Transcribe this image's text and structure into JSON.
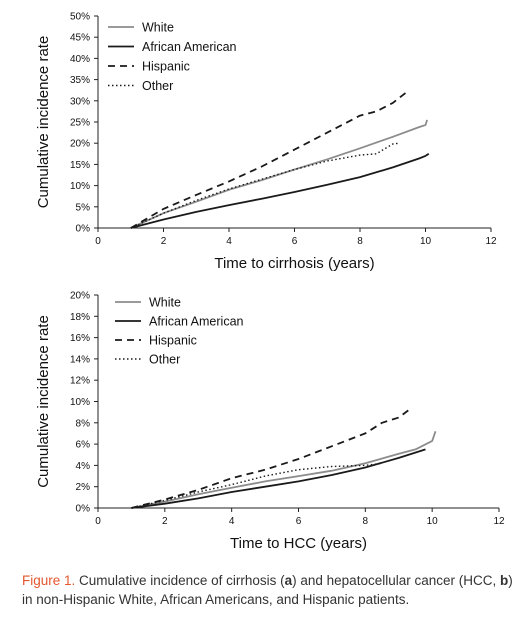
{
  "chart_data": [
    {
      "type": "line",
      "xlabel": "Time to cirrhosis (years)",
      "ylabel": "Cumulative incidence rate",
      "xlim": [
        0,
        12
      ],
      "ylim": [
        0,
        50
      ],
      "xticks": [
        "0",
        "2",
        "4",
        "6",
        "8",
        "10",
        "12"
      ],
      "yticks": [
        "0%",
        "5%",
        "10%",
        "15%",
        "20%",
        "25%",
        "30%",
        "35%",
        "40%",
        "45%",
        "50%"
      ],
      "grid": false,
      "legend_position": "top-left",
      "series": [
        {
          "name": "White",
          "color": "#8c8c8c",
          "style": "solid",
          "x": [
            1,
            2,
            3,
            4,
            5,
            6,
            7,
            8,
            9,
            9.8,
            10,
            10.05
          ],
          "y": [
            0,
            3.5,
            6.2,
            9,
            11.3,
            13.8,
            16.2,
            18.8,
            21.5,
            23.8,
            24.3,
            25.5
          ]
        },
        {
          "name": "African American",
          "color": "#1a1a1a",
          "style": "solid",
          "x": [
            1,
            2,
            3,
            4,
            5,
            6,
            7,
            8,
            9,
            9.8,
            10,
            10.1
          ],
          "y": [
            0,
            2,
            3.8,
            5.4,
            6.9,
            8.5,
            10.2,
            12,
            14.3,
            16.4,
            17,
            17.5
          ]
        },
        {
          "name": "Hispanic",
          "color": "#1a1a1a",
          "style": "dashed",
          "x": [
            1,
            2,
            3,
            4,
            5,
            6,
            7,
            8,
            8.5,
            9,
            9.5
          ],
          "y": [
            0,
            4.5,
            7.8,
            11,
            14.5,
            18.5,
            22.5,
            26.5,
            27.5,
            29.5,
            32.5
          ]
        },
        {
          "name": "Other",
          "color": "#1a1a1a",
          "style": "dotted",
          "x": [
            1,
            2,
            3,
            4,
            5,
            6,
            7,
            8,
            8.5,
            9,
            9.2
          ],
          "y": [
            0,
            3.5,
            6.5,
            9.2,
            11.5,
            13.8,
            15.8,
            17.2,
            17.5,
            19.8,
            20
          ]
        }
      ]
    },
    {
      "type": "line",
      "xlabel": "Time to HCC (years)",
      "ylabel": "Cumulative incidence rate",
      "xlim": [
        0,
        12
      ],
      "ylim": [
        0,
        20
      ],
      "xticks": [
        "0",
        "2",
        "4",
        "6",
        "8",
        "10",
        "12"
      ],
      "yticks": [
        "0%",
        "2%",
        "4%",
        "6%",
        "8%",
        "10%",
        "12%",
        "14%",
        "16%",
        "18%",
        "20%"
      ],
      "grid": false,
      "legend_position": "top-left",
      "series": [
        {
          "name": "White",
          "color": "#8c8c8c",
          "style": "solid",
          "x": [
            1,
            2,
            3,
            4,
            5,
            6,
            7,
            8,
            9,
            9.5,
            10,
            10.1
          ],
          "y": [
            0,
            0.6,
            1.3,
            1.9,
            2.5,
            3,
            3.5,
            4.2,
            5.1,
            5.5,
            6.3,
            7.2
          ]
        },
        {
          "name": "African American",
          "color": "#1a1a1a",
          "style": "solid",
          "x": [
            1,
            2,
            3,
            4,
            5,
            6,
            7,
            8,
            9,
            9.8
          ],
          "y": [
            0,
            0.4,
            0.9,
            1.5,
            2,
            2.5,
            3.1,
            3.8,
            4.7,
            5.5
          ]
        },
        {
          "name": "Hispanic",
          "color": "#1a1a1a",
          "style": "dashed",
          "x": [
            1,
            2,
            3,
            4,
            5,
            6,
            7,
            8,
            8.5,
            9,
            9.3
          ],
          "y": [
            0,
            0.8,
            1.7,
            2.8,
            3.6,
            4.6,
            5.8,
            7,
            8,
            8.5,
            9.2
          ]
        },
        {
          "name": "Other",
          "color": "#1a1a1a",
          "style": "dotted",
          "x": [
            1,
            2,
            3,
            4,
            5,
            6,
            7,
            8,
            8.5
          ],
          "y": [
            0,
            0.7,
            1.5,
            2.2,
            3,
            3.6,
            3.9,
            4,
            4.2
          ]
        }
      ]
    }
  ],
  "caption": {
    "figure_label": "Figure 1.",
    "text_parts": [
      " Cumulative incidence of cirrhosis (",
      "a",
      ") and hepatocellular cancer (HCC, ",
      "b",
      ") in non-Hispanic White, African Americans, and Hispanic patients."
    ]
  }
}
